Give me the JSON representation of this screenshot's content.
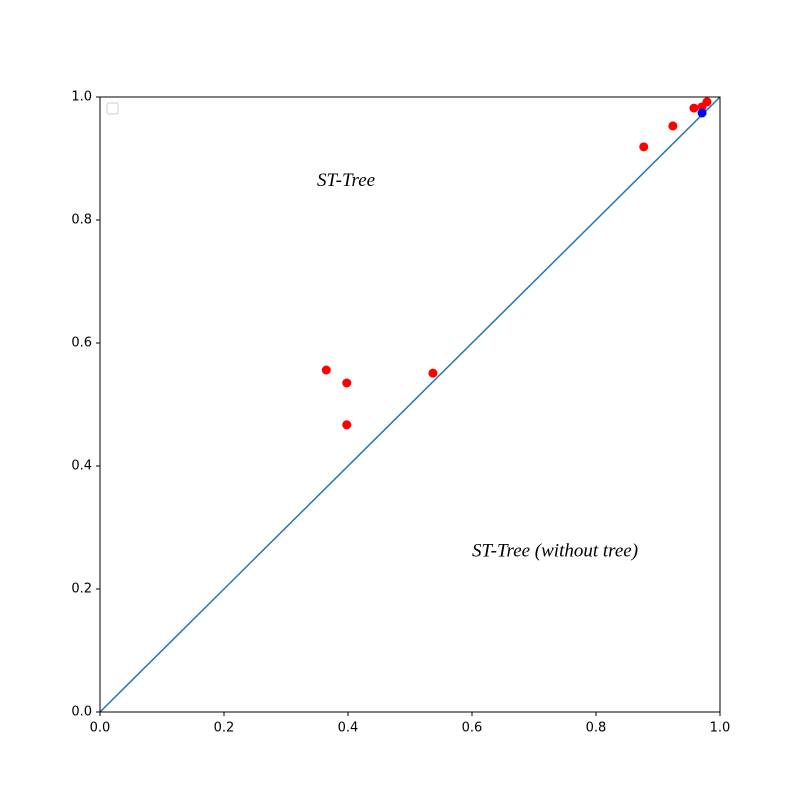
{
  "chart_data": {
    "type": "scatter",
    "xlim": [
      0,
      1
    ],
    "ylim": [
      0,
      1
    ],
    "xticks": [
      {
        "value": 0,
        "label": "0.0"
      },
      0.2,
      0.4,
      0.6,
      0.8,
      {
        "value": 1,
        "label": "1.0"
      }
    ],
    "yticks": [
      {
        "value": 0,
        "label": "0.0"
      },
      0.2,
      0.4,
      0.6,
      0.8,
      {
        "value": 1,
        "label": "1.0"
      }
    ],
    "series": [
      {
        "color": "#ff0000",
        "x": [
          0.365,
          0.398,
          0.398,
          0.537,
          0.877,
          0.924,
          0.958,
          0.971,
          0.979
        ],
        "y": [
          0.556,
          0.535,
          0.467,
          0.551,
          0.919,
          0.953,
          0.982,
          0.984,
          0.992
        ]
      },
      {
        "color": "#0000ff",
        "x": [
          0.971
        ],
        "y": [
          0.974
        ]
      }
    ],
    "lines": [
      {
        "color": "#1f77b4",
        "x": [
          0,
          1
        ],
        "y": [
          0,
          1
        ]
      }
    ],
    "annotations": [
      {
        "text": "ST-Tree",
        "x": 0.35,
        "y": 0.862
      },
      {
        "text": "ST-Tree (without tree)",
        "x": 0.6,
        "y": 0.26
      }
    ]
  }
}
